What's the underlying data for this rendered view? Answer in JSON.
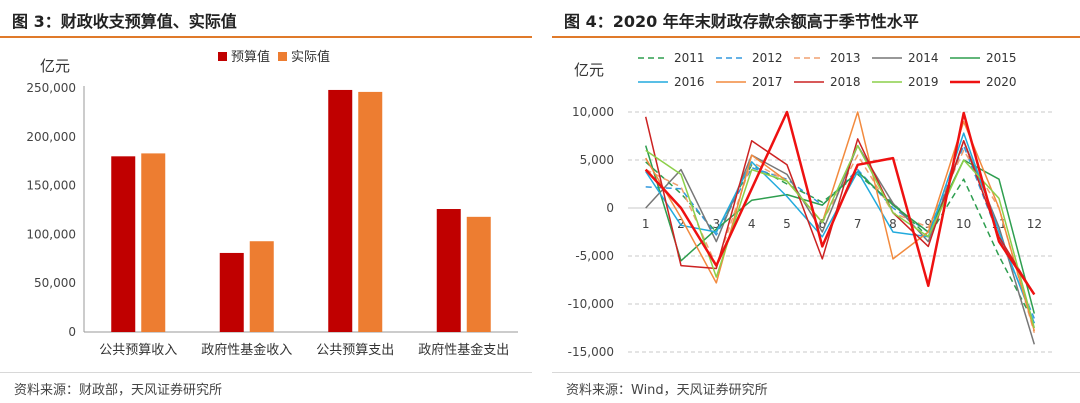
{
  "left": {
    "title": "图 3：财政收支预算值、实际值",
    "source": "资料来源：财政部，天风证券研究所"
  },
  "right": {
    "title": "图 4：2020 年年末财政存款余额高于季节性水平",
    "source": "资料来源：Wind，天风证券研究所"
  },
  "chart_data": [
    {
      "type": "bar",
      "title": "财政收支预算值、实际值",
      "ylabel": "亿元",
      "ylim": [
        0,
        250000
      ],
      "yticks": [
        0,
        50000,
        100000,
        150000,
        200000,
        250000
      ],
      "ytick_labels": [
        "0",
        "50,000",
        "100,000",
        "150,000",
        "200,000",
        "250,000"
      ],
      "categories": [
        "公共预算收入",
        "政府性基金收入",
        "公共预算支出",
        "政府性基金支出"
      ],
      "series": [
        {
          "name": "预算值",
          "color": "#c00000",
          "values": [
            180000,
            81000,
            248000,
            126000
          ]
        },
        {
          "name": "实际值",
          "color": "#ed7d31",
          "values": [
            183000,
            93000,
            246000,
            118000
          ]
        }
      ],
      "legend": "top-center",
      "grid": false
    },
    {
      "type": "line",
      "title": "2020 年年末财政存款余额高于季节性水平",
      "ylabel": "亿元",
      "ylim": [
        -15000,
        10000
      ],
      "yticks": [
        -15000,
        -10000,
        -5000,
        0,
        5000,
        10000
      ],
      "ytick_labels": [
        "-15,000",
        "-10,000",
        "-5,000",
        "0",
        "5,000",
        "10,000"
      ],
      "x": [
        1,
        2,
        3,
        4,
        5,
        6,
        7,
        8,
        9,
        10,
        11,
        12
      ],
      "xtick_labels": [
        "1",
        "2",
        "3",
        "4",
        "5",
        "6",
        "7",
        "8",
        "9",
        "10",
        "11",
        "12"
      ],
      "grid": true,
      "legend": "top",
      "series": [
        {
          "name": "2011",
          "color": "#2e9e4f",
          "dash": "dashed",
          "width": 1.5,
          "values": [
            4800,
            1500,
            -2500,
            4500,
            2500,
            600,
            3500,
            500,
            -3000,
            3000,
            -5000,
            -12000
          ]
        },
        {
          "name": "2012",
          "color": "#3399dd",
          "dash": "dashed",
          "width": 1.5,
          "values": [
            2200,
            2000,
            -2800,
            4200,
            3000,
            300,
            4000,
            0,
            -2500,
            6500,
            -3000,
            -11500
          ]
        },
        {
          "name": "2013",
          "color": "#f0a070",
          "dash": "dashed",
          "width": 1.5,
          "values": [
            4000,
            2200,
            -6000,
            4800,
            2800,
            -1500,
            5500,
            -500,
            -2000,
            6000,
            0,
            -13000
          ]
        },
        {
          "name": "2014",
          "color": "#777777",
          "dash": "solid",
          "width": 1.5,
          "values": [
            0,
            4000,
            -3500,
            5500,
            3500,
            -2500,
            6500,
            500,
            -3500,
            7000,
            -2000,
            -14200
          ]
        },
        {
          "name": "2015",
          "color": "#2e9e4f",
          "dash": "solid",
          "width": 1.5,
          "values": [
            6500,
            -5500,
            -2200,
            800,
            1400,
            300,
            3800,
            300,
            -2500,
            5000,
            3000,
            -11000
          ]
        },
        {
          "name": "2016",
          "color": "#22aadd",
          "dash": "solid",
          "width": 1.5,
          "values": [
            3800,
            -1800,
            -2500,
            4800,
            1200,
            -3000,
            3800,
            -2500,
            -3000,
            7800,
            -2500,
            -12000
          ]
        },
        {
          "name": "2017",
          "color": "#f28a3e",
          "dash": "solid",
          "width": 1.5,
          "values": [
            5200,
            -1000,
            -7800,
            5500,
            2800,
            -1500,
            10000,
            -5300,
            -2500,
            9000,
            0,
            -12800
          ]
        },
        {
          "name": "2018",
          "color": "#cc2222",
          "dash": "solid",
          "width": 1.5,
          "values": [
            9500,
            -6000,
            -6300,
            7000,
            4500,
            -5300,
            7200,
            -500,
            -4000,
            7000,
            -3000,
            -9000
          ]
        },
        {
          "name": "2019",
          "color": "#8ccf4a",
          "dash": "solid",
          "width": 1.5,
          "values": [
            6000,
            3500,
            -7200,
            4000,
            2800,
            -1500,
            6500,
            -500,
            -3000,
            5000,
            1000,
            -12500
          ]
        },
        {
          "name": "2020",
          "color": "#ee1111",
          "dash": "solid",
          "width": 2.5,
          "values": [
            4000,
            0,
            -6000,
            2000,
            10000,
            -4000,
            4500,
            5200,
            -8100,
            9900,
            -3500,
            -9000
          ]
        }
      ]
    }
  ]
}
